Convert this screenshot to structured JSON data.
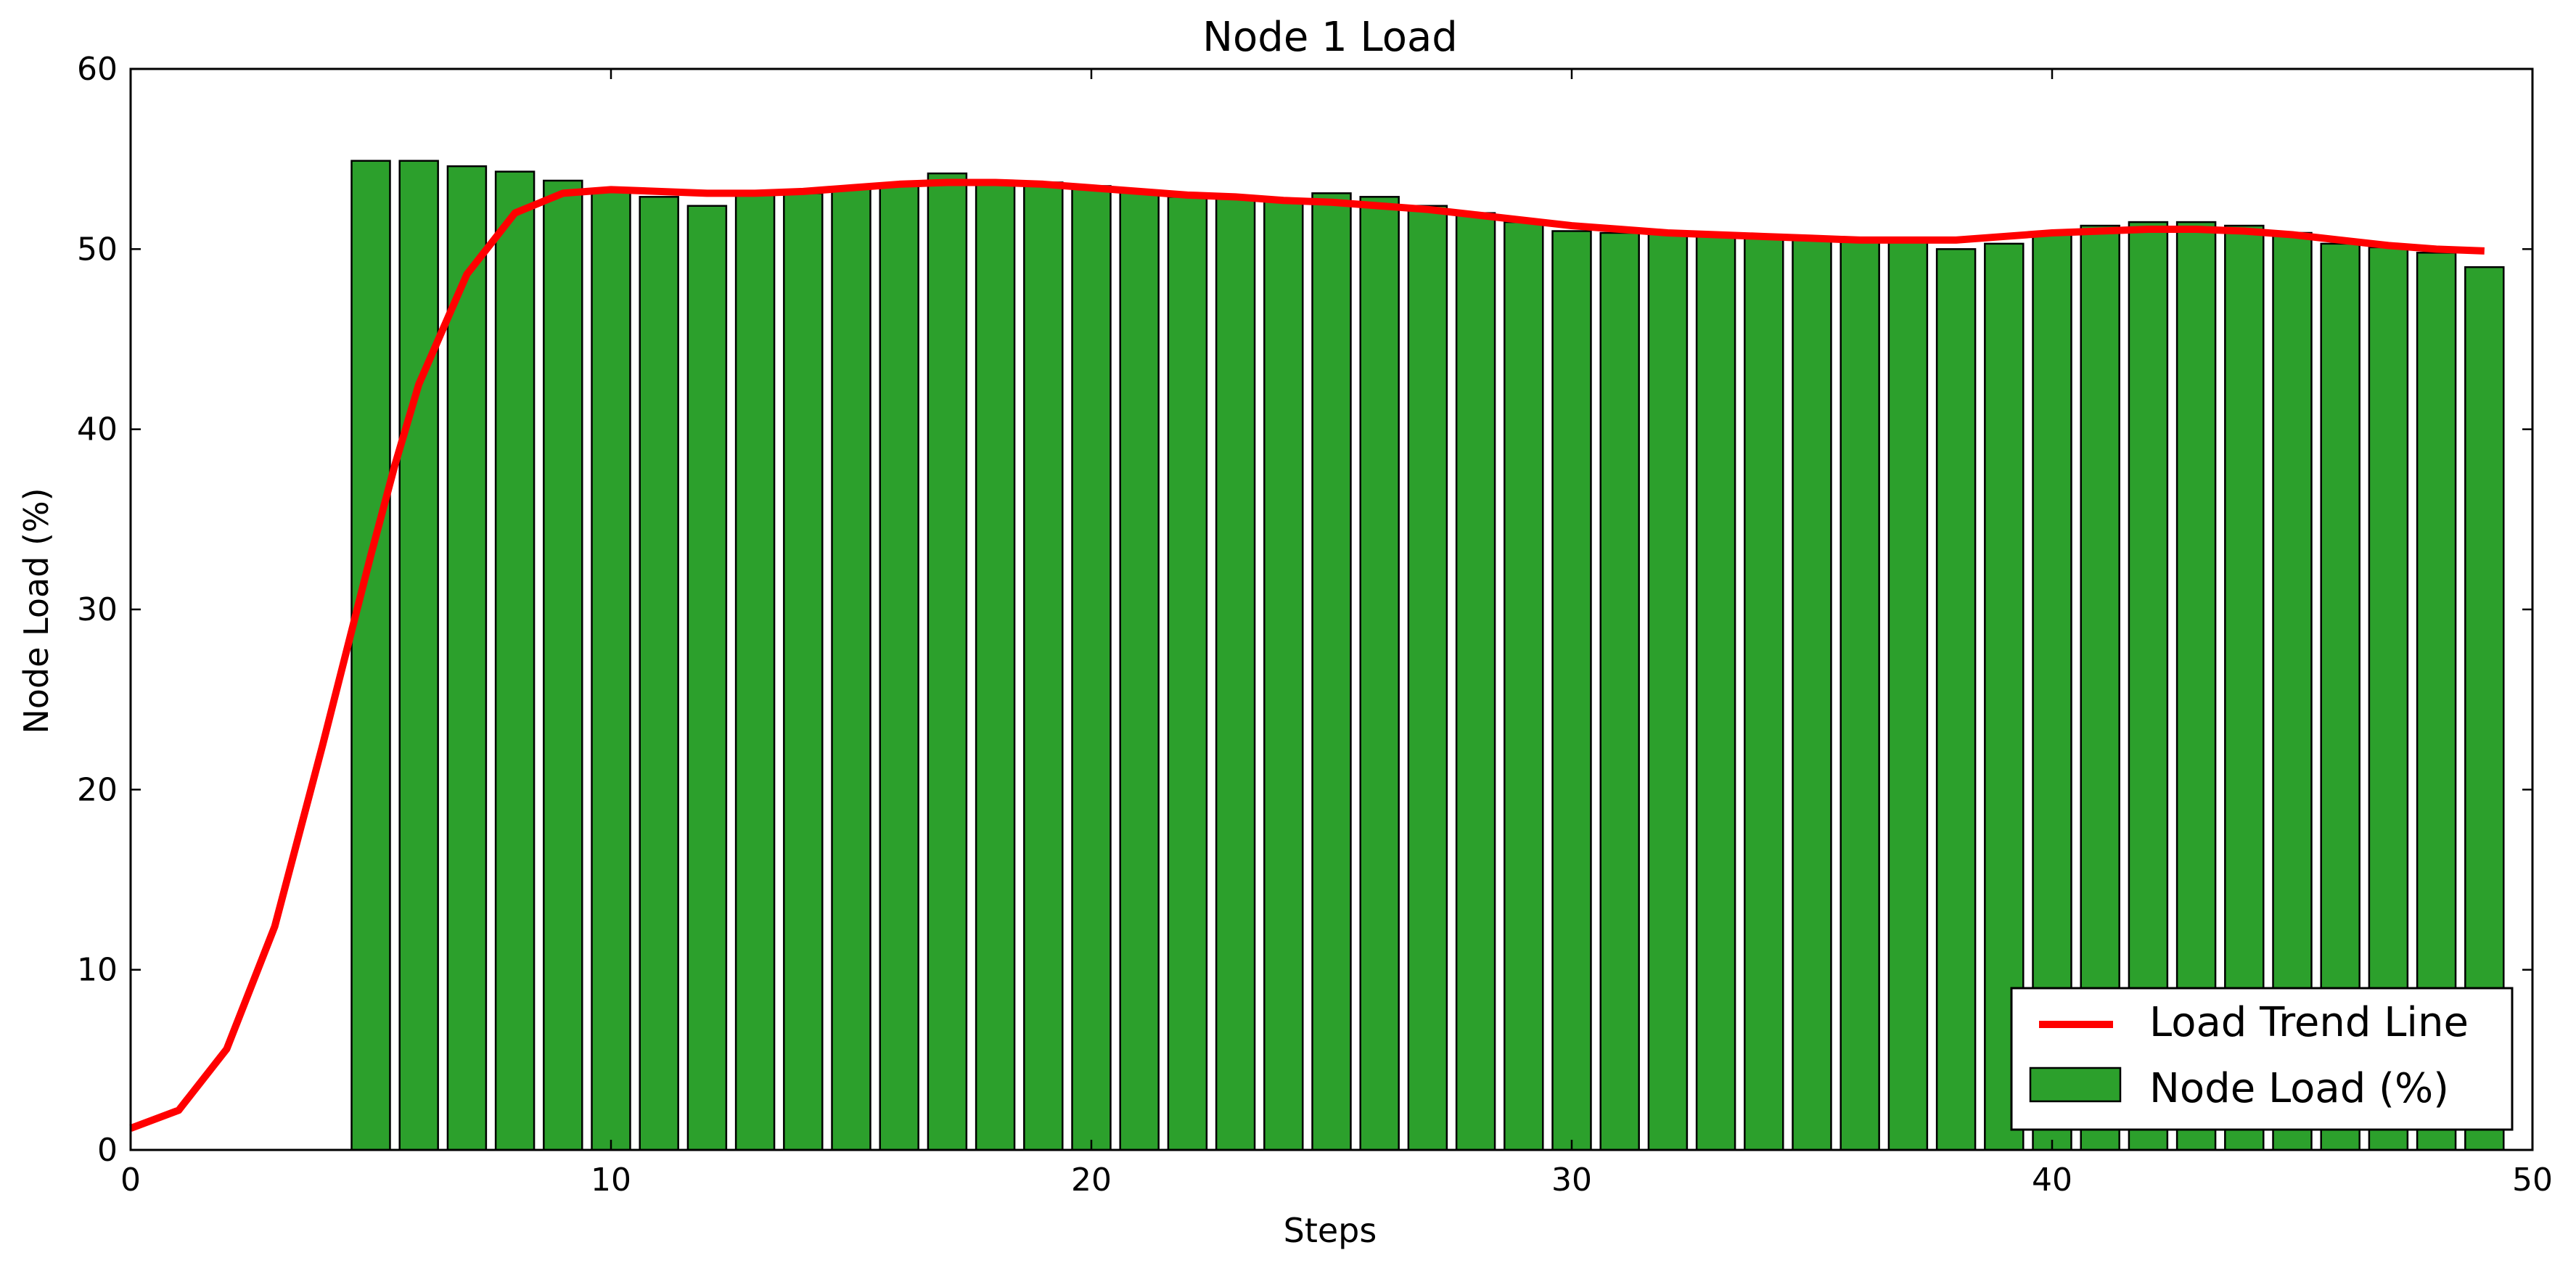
{
  "chart_data": {
    "type": "bar",
    "title": "Node 1 Load",
    "xlabel": "Steps",
    "ylabel": "Node Load (%)",
    "xlim": [
      0,
      50
    ],
    "ylim": [
      0,
      60
    ],
    "xticks": [
      0,
      10,
      20,
      30,
      40,
      50
    ],
    "yticks": [
      0,
      10,
      20,
      30,
      40,
      50,
      60
    ],
    "grid": false,
    "legend_position": "bottom-right",
    "series": [
      {
        "name": "Node Load (%)",
        "type": "bar",
        "color": "#2ca02c",
        "x": [
          5,
          6,
          7,
          8,
          9,
          10,
          11,
          12,
          13,
          14,
          15,
          16,
          17,
          18,
          19,
          20,
          21,
          22,
          23,
          24,
          25,
          26,
          27,
          28,
          29,
          30,
          31,
          32,
          33,
          34,
          35,
          36,
          37,
          38,
          39,
          40,
          41,
          42,
          43,
          44,
          45,
          46,
          47,
          48,
          49
        ],
        "values": [
          54.9,
          54.9,
          54.6,
          54.3,
          53.8,
          53.3,
          52.9,
          52.4,
          53.0,
          53.1,
          53.4,
          53.6,
          54.2,
          53.7,
          53.7,
          53.5,
          53.2,
          52.9,
          52.9,
          52.7,
          53.1,
          52.9,
          52.4,
          52.0,
          51.5,
          51.0,
          50.9,
          50.9,
          50.9,
          50.8,
          50.6,
          50.4,
          50.4,
          50.0,
          50.3,
          50.8,
          51.3,
          51.5,
          51.5,
          51.3,
          50.9,
          50.3,
          50.1,
          49.8,
          49.0
        ]
      },
      {
        "name": "Load Trend Line",
        "type": "line",
        "color": "#ff0000",
        "x": [
          0,
          1,
          2,
          3,
          4,
          5,
          5.5,
          6,
          7,
          8,
          9,
          10,
          11,
          12,
          13,
          14,
          15,
          16,
          17,
          18,
          19,
          20,
          21,
          22,
          23,
          24,
          25,
          26,
          27,
          28,
          29,
          30,
          31,
          32,
          33,
          34,
          35,
          36,
          37,
          38,
          39,
          40,
          41,
          42,
          43,
          44,
          45,
          46,
          47,
          48,
          49
        ],
        "values": [
          1.2,
          2.2,
          5.6,
          12.4,
          22.5,
          33.0,
          38.0,
          42.5,
          48.6,
          52.0,
          53.1,
          53.3,
          53.2,
          53.1,
          53.1,
          53.2,
          53.4,
          53.6,
          53.7,
          53.7,
          53.6,
          53.4,
          53.2,
          53.0,
          52.9,
          52.7,
          52.6,
          52.4,
          52.2,
          51.9,
          51.6,
          51.3,
          51.1,
          50.9,
          50.8,
          50.7,
          50.6,
          50.5,
          50.5,
          50.5,
          50.7,
          50.9,
          51.0,
          51.1,
          51.1,
          51.0,
          50.8,
          50.5,
          50.2,
          50.0,
          49.9
        ]
      }
    ]
  }
}
